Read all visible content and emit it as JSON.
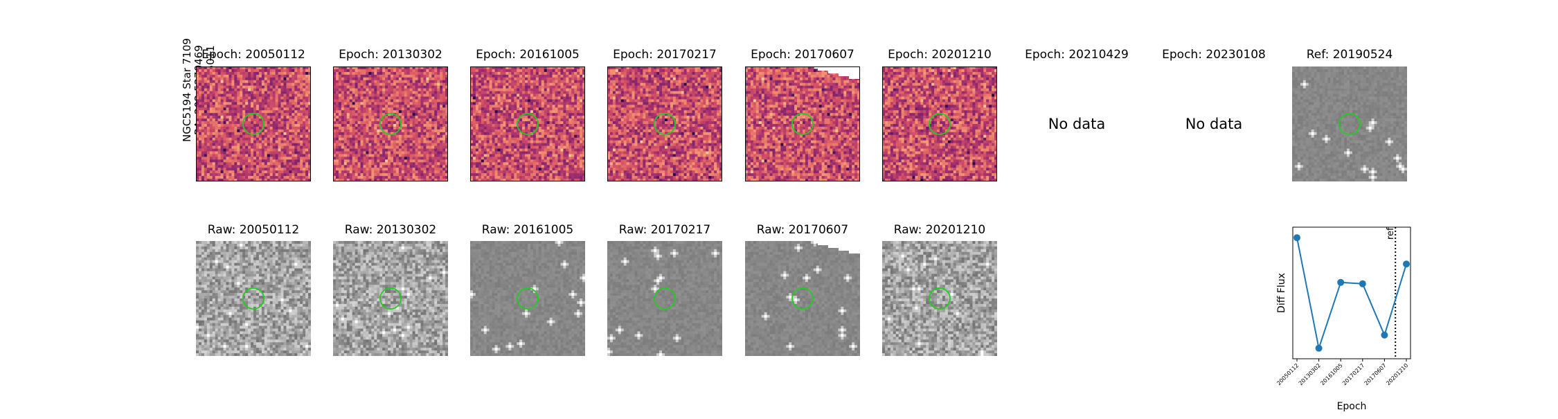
{
  "star": {
    "name": "NGC5194 Star 7109",
    "ra": "RA: 202.5270469",
    "dec": "Dec: 47.1605011"
  },
  "diff_panels": [
    {
      "title": "Epoch: 20050112",
      "has_data": true,
      "palette": "magma"
    },
    {
      "title": "Epoch: 20130302",
      "has_data": true,
      "palette": "magma"
    },
    {
      "title": "Epoch: 20161005",
      "has_data": true,
      "palette": "magma"
    },
    {
      "title": "Epoch: 20170217",
      "has_data": true,
      "palette": "magma"
    },
    {
      "title": "Epoch: 20170607",
      "has_data": true,
      "palette": "magma",
      "clipped_corner": true
    },
    {
      "title": "Epoch: 20201210",
      "has_data": true,
      "palette": "magma"
    },
    {
      "title": "Epoch: 20210429",
      "has_data": false,
      "nodata_text": "No data"
    },
    {
      "title": "Epoch: 20230108",
      "has_data": false,
      "nodata_text": "No data"
    }
  ],
  "ref_panel": {
    "title": "Ref: 20190524",
    "palette": "gray"
  },
  "raw_panels": [
    {
      "title": "Raw: 20050112"
    },
    {
      "title": "Raw: 20130302"
    },
    {
      "title": "Raw: 20161005"
    },
    {
      "title": "Raw: 20170217"
    },
    {
      "title": "Raw: 20170607",
      "clipped_corner": true
    },
    {
      "title": "Raw: 20201210"
    }
  ],
  "colors": {
    "circle": "#22cc22",
    "line": "#1f77b4",
    "ref_line": "#000000"
  },
  "chart_data": {
    "type": "line",
    "title": "",
    "xlabel": "Epoch",
    "ylabel": "Diff Flux",
    "categories": [
      "20050112",
      "20130302",
      "20161005",
      "20170217",
      "20170607",
      "20201210"
    ],
    "values": [
      0.92,
      0.08,
      0.58,
      0.57,
      0.18,
      0.72
    ],
    "ylim": [
      0,
      1
    ],
    "ref_marker": {
      "position_index": 4.5,
      "label": "ref",
      "style": "dotted"
    },
    "grid": false,
    "yticks_shown": false
  }
}
